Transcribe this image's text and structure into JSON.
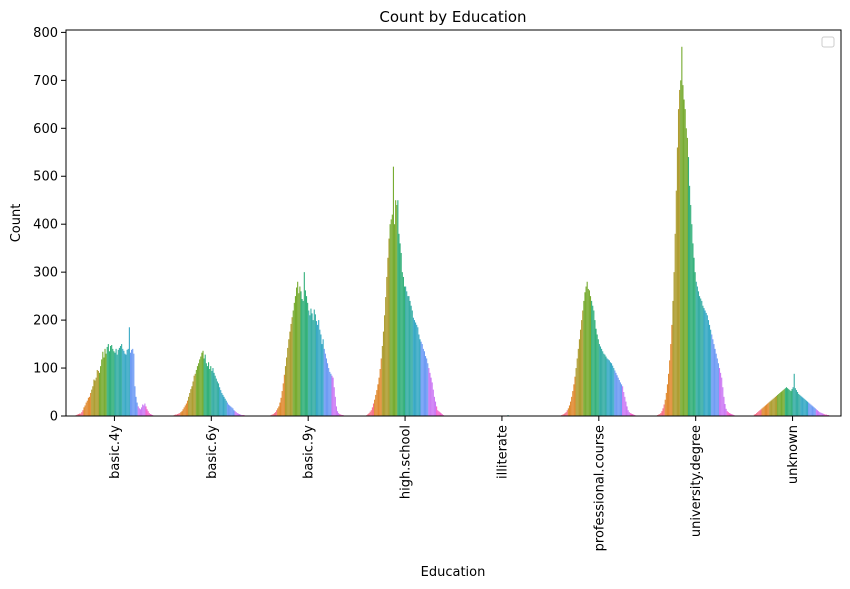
{
  "chart_data": {
    "type": "bar",
    "title": "Count by Education",
    "xlabel": "Education",
    "ylabel": "Count",
    "ylim": [
      0,
      805
    ],
    "yticks": [
      0,
      100,
      200,
      300,
      400,
      500,
      600,
      700,
      800
    ],
    "legend": {
      "placement": "top-right",
      "entries": []
    },
    "grid": false,
    "categories": [
      "basic.4y",
      "basic.6y",
      "basic.9y",
      "high.school",
      "illiterate",
      "professional.course",
      "university.degree",
      "unknown"
    ],
    "series_count": 70,
    "hue_colors": [
      "#f77189",
      "#e08a31",
      "#ae9d31",
      "#77ab31",
      "#33b07a",
      "#36ada4",
      "#38a9c5",
      "#6e9bf4",
      "#cc7af4",
      "#f565cc"
    ],
    "values_by_category": {
      "basic.4y": [
        2,
        3,
        4,
        5,
        5,
        8,
        12,
        18,
        22,
        28,
        32,
        38,
        40,
        48,
        55,
        62,
        76,
        74,
        80,
        96,
        94,
        90,
        104,
        118,
        134,
        122,
        140,
        130,
        144,
        150,
        135,
        146,
        148,
        140,
        135,
        132,
        140,
        128,
        138,
        142,
        146,
        150,
        140,
        136,
        130,
        128,
        138,
        140,
        185,
        132,
        138,
        140,
        130,
        62,
        40,
        28,
        20,
        16,
        14,
        18,
        24,
        22,
        26,
        20,
        14,
        10,
        6,
        4,
        3,
        2
      ],
      "basic.6y": [
        1,
        2,
        3,
        3,
        4,
        5,
        6,
        8,
        10,
        14,
        18,
        22,
        26,
        32,
        40,
        48,
        56,
        62,
        72,
        84,
        88,
        96,
        104,
        110,
        118,
        124,
        132,
        136,
        120,
        128,
        110,
        104,
        112,
        98,
        104,
        94,
        100,
        90,
        84,
        78,
        72,
        68,
        60,
        54,
        48,
        44,
        40,
        36,
        32,
        28,
        24,
        22,
        20,
        18,
        16,
        12,
        10,
        8,
        6,
        5,
        4,
        3,
        2,
        2,
        2,
        1,
        1,
        1,
        1,
        0
      ],
      "basic.9y": [
        1,
        2,
        3,
        4,
        6,
        8,
        12,
        16,
        20,
        28,
        38,
        52,
        68,
        86,
        104,
        122,
        142,
        160,
        176,
        192,
        206,
        220,
        236,
        250,
        268,
        280,
        256,
        270,
        260,
        244,
        240,
        300,
        262,
        250,
        236,
        220,
        210,
        224,
        214,
        200,
        222,
        212,
        198,
        190,
        200,
        180,
        170,
        150,
        160,
        140,
        130,
        120,
        110,
        100,
        92,
        88,
        84,
        80,
        60,
        40,
        20,
        10,
        6,
        4,
        3,
        2,
        2,
        1,
        1,
        0
      ],
      "high.school": [
        2,
        4,
        6,
        9,
        12,
        18,
        26,
        34,
        44,
        54,
        66,
        80,
        98,
        120,
        146,
        176,
        210,
        248,
        290,
        330,
        370,
        400,
        410,
        420,
        520,
        400,
        450,
        440,
        450,
        380,
        360,
        340,
        300,
        290,
        270,
        270,
        260,
        250,
        250,
        240,
        230,
        220,
        205,
        200,
        195,
        190,
        185,
        170,
        160,
        155,
        150,
        140,
        135,
        125,
        120,
        110,
        100,
        90,
        80,
        70,
        55,
        40,
        30,
        20,
        12,
        10,
        8,
        6,
        4,
        2
      ],
      "illiterate": [
        0,
        0,
        0,
        0,
        0,
        0,
        0,
        0,
        0,
        0,
        0,
        0,
        0,
        0,
        0,
        0,
        0,
        0,
        0,
        0,
        0,
        0,
        0,
        0,
        0,
        1,
        0,
        0,
        0,
        0,
        0,
        0,
        0,
        1,
        0,
        0,
        0,
        0,
        0,
        0,
        2,
        0,
        0,
        0,
        0,
        1,
        0,
        0,
        0,
        0,
        0,
        0,
        1,
        0,
        0,
        0,
        0,
        0,
        0,
        0,
        0,
        0,
        0,
        0,
        0,
        0,
        0,
        0,
        0,
        0
      ],
      "professional.course": [
        1,
        2,
        3,
        4,
        6,
        8,
        12,
        16,
        22,
        30,
        40,
        52,
        66,
        82,
        100,
        120,
        140,
        160,
        180,
        200,
        220,
        240,
        258,
        270,
        280,
        265,
        262,
        250,
        240,
        230,
        220,
        200,
        182,
        170,
        160,
        150,
        145,
        140,
        135,
        130,
        128,
        124,
        120,
        118,
        116,
        112,
        110,
        105,
        100,
        95,
        90,
        85,
        80,
        75,
        70,
        66,
        62,
        50,
        40,
        30,
        20,
        12,
        8,
        6,
        5,
        4,
        3,
        2,
        1,
        1
      ],
      "university.degree": [
        2,
        3,
        4,
        6,
        10,
        16,
        24,
        34,
        48,
        66,
        88,
        116,
        150,
        190,
        240,
        300,
        380,
        470,
        560,
        640,
        680,
        700,
        770,
        690,
        660,
        640,
        600,
        580,
        540,
        480,
        440,
        400,
        360,
        330,
        300,
        280,
        270,
        260,
        250,
        245,
        240,
        230,
        225,
        220,
        215,
        210,
        200,
        190,
        180,
        170,
        160,
        150,
        140,
        130,
        120,
        110,
        100,
        90,
        80,
        60,
        40,
        25,
        15,
        10,
        8,
        6,
        5,
        4,
        3,
        2
      ],
      "unknown": [
        3,
        4,
        6,
        8,
        10,
        12,
        14,
        16,
        18,
        20,
        22,
        24,
        26,
        28,
        30,
        32,
        34,
        36,
        38,
        40,
        42,
        44,
        46,
        48,
        50,
        52,
        54,
        56,
        58,
        60,
        58,
        56,
        54,
        52,
        56,
        60,
        88,
        58,
        54,
        50,
        46,
        44,
        42,
        40,
        38,
        36,
        34,
        32,
        30,
        28,
        26,
        24,
        22,
        20,
        18,
        16,
        14,
        12,
        10,
        8,
        7,
        6,
        5,
        4,
        3,
        3,
        2,
        2,
        1,
        1
      ]
    }
  }
}
